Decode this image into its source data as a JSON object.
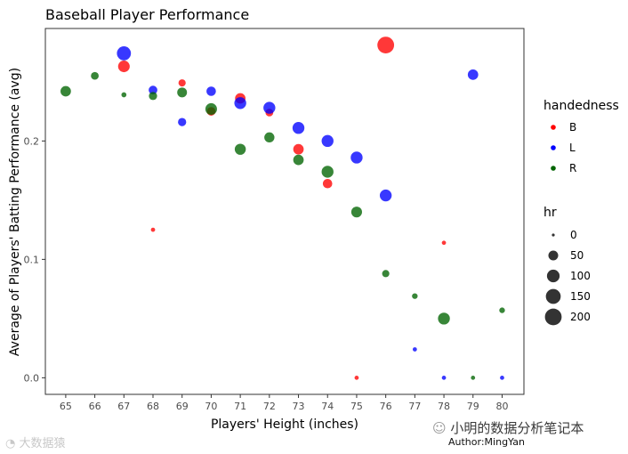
{
  "chart_data": {
    "type": "scatter",
    "title": "Baseball Player Performance",
    "xlabel": "Players' Height (inches)",
    "ylabel": "Average of Players' Batting Performance (avg)",
    "x_ticks": [
      65,
      66,
      67,
      68,
      69,
      70,
      71,
      72,
      73,
      74,
      75,
      76,
      77,
      78,
      79,
      80
    ],
    "y_ticks": [
      0.0,
      0.1,
      0.2
    ],
    "y_tick_labels": [
      "0.0",
      "0.1",
      "0.2"
    ],
    "xlim": [
      64.3,
      80.75
    ],
    "ylim": [
      -0.014,
      0.295
    ],
    "grid": true,
    "colors": {
      "B": "#ff0000",
      "L": "#0000ff",
      "R": "#006400"
    },
    "legend": {
      "placement": "right",
      "color_title": "handedness",
      "color_items": [
        "B",
        "L",
        "R"
      ],
      "size_title": "hr",
      "size_items": [
        "0",
        "50",
        "100",
        "150",
        "200"
      ],
      "size_values": [
        0,
        50,
        100,
        150,
        200
      ]
    },
    "series": [
      {
        "name": "B",
        "points": [
          {
            "x": 67,
            "y": 0.263,
            "hr": 80
          },
          {
            "x": 68,
            "y": 0.125,
            "hr": 2
          },
          {
            "x": 69,
            "y": 0.249,
            "hr": 20
          },
          {
            "x": 70,
            "y": 0.225,
            "hr": 35
          },
          {
            "x": 71,
            "y": 0.236,
            "hr": 60
          },
          {
            "x": 72,
            "y": 0.224,
            "hr": 25
          },
          {
            "x": 73,
            "y": 0.193,
            "hr": 60
          },
          {
            "x": 74,
            "y": 0.164,
            "hr": 45
          },
          {
            "x": 75,
            "y": 0.0,
            "hr": 2
          },
          {
            "x": 76,
            "y": 0.281,
            "hr": 200
          },
          {
            "x": 78,
            "y": 0.114,
            "hr": 2
          }
        ]
      },
      {
        "name": "L",
        "points": [
          {
            "x": 67,
            "y": 0.274,
            "hr": 130
          },
          {
            "x": 68,
            "y": 0.243,
            "hr": 35
          },
          {
            "x": 69,
            "y": 0.216,
            "hr": 30
          },
          {
            "x": 70,
            "y": 0.242,
            "hr": 45
          },
          {
            "x": 71,
            "y": 0.232,
            "hr": 85
          },
          {
            "x": 72,
            "y": 0.228,
            "hr": 85
          },
          {
            "x": 73,
            "y": 0.211,
            "hr": 85
          },
          {
            "x": 74,
            "y": 0.2,
            "hr": 85
          },
          {
            "x": 75,
            "y": 0.186,
            "hr": 85
          },
          {
            "x": 76,
            "y": 0.154,
            "hr": 85
          },
          {
            "x": 77,
            "y": 0.024,
            "hr": 2
          },
          {
            "x": 78,
            "y": 0.0,
            "hr": 2
          },
          {
            "x": 79,
            "y": 0.256,
            "hr": 60
          },
          {
            "x": 80,
            "y": 0.0,
            "hr": 2
          }
        ]
      },
      {
        "name": "R",
        "points": [
          {
            "x": 65,
            "y": 0.242,
            "hr": 60
          },
          {
            "x": 66,
            "y": 0.255,
            "hr": 25
          },
          {
            "x": 67,
            "y": 0.239,
            "hr": 5
          },
          {
            "x": 68,
            "y": 0.238,
            "hr": 30
          },
          {
            "x": 69,
            "y": 0.241,
            "hr": 50
          },
          {
            "x": 70,
            "y": 0.227,
            "hr": 80
          },
          {
            "x": 71,
            "y": 0.193,
            "hr": 70
          },
          {
            "x": 72,
            "y": 0.203,
            "hr": 55
          },
          {
            "x": 73,
            "y": 0.184,
            "hr": 60
          },
          {
            "x": 74,
            "y": 0.174,
            "hr": 85
          },
          {
            "x": 75,
            "y": 0.14,
            "hr": 65
          },
          {
            "x": 76,
            "y": 0.088,
            "hr": 20
          },
          {
            "x": 77,
            "y": 0.069,
            "hr": 8
          },
          {
            "x": 78,
            "y": 0.05,
            "hr": 85
          },
          {
            "x": 79,
            "y": 0.0,
            "hr": 2
          },
          {
            "x": 80,
            "y": 0.057,
            "hr": 8
          }
        ]
      }
    ]
  },
  "watermarks": {
    "left": "大数据猿",
    "right": "小明的数据分析笔记本",
    "author": "Author:MingYan"
  }
}
